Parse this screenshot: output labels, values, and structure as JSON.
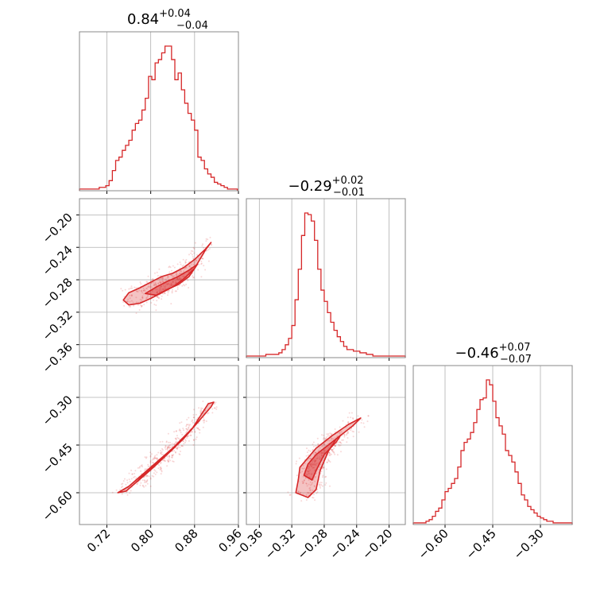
{
  "chart_data": {
    "type": "corner",
    "color": "#d62728",
    "grid": true,
    "parameters": [
      {
        "title": {
          "value": "0.84",
          "plus": "+0.04",
          "minus": "−0.04"
        },
        "range": [
          0.67,
          0.96
        ],
        "ticks": [
          0.72,
          0.8,
          0.88,
          0.96
        ],
        "tick_labels": [
          "0.72",
          "0.80",
          "0.88",
          "0.96"
        ],
        "hist": {
          "bins": [
            0.67,
            0.676,
            0.682,
            0.688,
            0.694,
            0.7,
            0.706,
            0.712,
            0.718,
            0.724,
            0.73,
            0.736,
            0.742,
            0.748,
            0.754,
            0.76,
            0.766,
            0.772,
            0.778,
            0.784,
            0.79,
            0.796,
            0.802,
            0.808,
            0.814,
            0.82,
            0.826,
            0.832,
            0.838,
            0.844,
            0.85,
            0.856,
            0.862,
            0.868,
            0.874,
            0.88,
            0.886,
            0.892,
            0.898,
            0.904,
            0.91,
            0.916,
            0.922,
            0.928,
            0.934,
            0.94,
            0.946,
            0.952,
            0.958
          ],
          "counts": [
            0.01,
            0.01,
            0.01,
            0.01,
            0.01,
            0.01,
            0.02,
            0.02,
            0.03,
            0.06,
            0.12,
            0.18,
            0.2,
            0.24,
            0.27,
            0.3,
            0.36,
            0.4,
            0.42,
            0.48,
            0.55,
            0.68,
            0.66,
            0.76,
            0.78,
            0.82,
            0.86,
            0.86,
            0.78,
            0.66,
            0.7,
            0.6,
            0.52,
            0.46,
            0.42,
            0.36,
            0.2,
            0.18,
            0.13,
            0.1,
            0.08,
            0.05,
            0.04,
            0.03,
            0.02,
            0.01,
            0.01,
            0.01
          ]
        }
      },
      {
        "title": {
          "value": "−0.29",
          "plus": "+0.02",
          "minus": "−0.01"
        },
        "range": [
          -0.376,
          -0.18
        ],
        "ticks": [
          -0.36,
          -0.32,
          -0.28,
          -0.24,
          -0.2
        ],
        "tick_labels": [
          "−0.36",
          "−0.32",
          "−0.28",
          "−0.24",
          "−0.20"
        ],
        "hist": {
          "bins": [
            -0.376,
            -0.372,
            -0.368,
            -0.364,
            -0.36,
            -0.356,
            -0.352,
            -0.348,
            -0.344,
            -0.34,
            -0.336,
            -0.332,
            -0.328,
            -0.324,
            -0.32,
            -0.316,
            -0.312,
            -0.308,
            -0.304,
            -0.3,
            -0.296,
            -0.292,
            -0.288,
            -0.284,
            -0.28,
            -0.276,
            -0.272,
            -0.268,
            -0.264,
            -0.26,
            -0.256,
            -0.252,
            -0.248,
            -0.244,
            -0.24,
            -0.236,
            -0.232,
            -0.228,
            -0.224,
            -0.22,
            -0.216,
            -0.212,
            -0.208,
            -0.204,
            -0.2,
            -0.196,
            -0.192,
            -0.188,
            -0.184,
            -0.18
          ],
          "counts": [
            0.01,
            0.01,
            0.01,
            0.01,
            0.01,
            0.01,
            0.02,
            0.02,
            0.02,
            0.02,
            0.03,
            0.05,
            0.08,
            0.12,
            0.2,
            0.36,
            0.55,
            0.76,
            0.9,
            0.89,
            0.85,
            0.73,
            0.55,
            0.42,
            0.35,
            0.28,
            0.22,
            0.17,
            0.13,
            0.1,
            0.07,
            0.05,
            0.05,
            0.04,
            0.04,
            0.03,
            0.03,
            0.02,
            0.02,
            0.01,
            0.01,
            0.01,
            0.01,
            0.01,
            0.01,
            0.01,
            0.01,
            0.01,
            0.01
          ]
        }
      },
      {
        "title": {
          "value": "−0.46",
          "plus": "+0.07",
          "minus": "−0.07"
        },
        "range": [
          -0.7,
          -0.2
        ],
        "ticks": [
          -0.6,
          -0.45,
          -0.3
        ],
        "tick_labels": [
          "−0.60",
          "−0.45",
          "−0.30"
        ],
        "hist": {
          "bins": [
            -0.7,
            -0.69,
            -0.68,
            -0.67,
            -0.66,
            -0.65,
            -0.64,
            -0.63,
            -0.62,
            -0.61,
            -0.6,
            -0.59,
            -0.58,
            -0.57,
            -0.56,
            -0.55,
            -0.54,
            -0.53,
            -0.52,
            -0.51,
            -0.5,
            -0.49,
            -0.48,
            -0.47,
            -0.46,
            -0.45,
            -0.44,
            -0.43,
            -0.42,
            -0.41,
            -0.4,
            -0.39,
            -0.38,
            -0.37,
            -0.36,
            -0.35,
            -0.34,
            -0.33,
            -0.32,
            -0.31,
            -0.3,
            -0.29,
            -0.28,
            -0.27,
            -0.26,
            -0.25,
            -0.24,
            -0.23,
            -0.22,
            -0.21,
            -0.2
          ],
          "counts": [
            0.01,
            0.01,
            0.01,
            0.01,
            0.02,
            0.03,
            0.05,
            0.08,
            0.1,
            0.15,
            0.2,
            0.22,
            0.25,
            0.28,
            0.35,
            0.45,
            0.5,
            0.52,
            0.56,
            0.62,
            0.7,
            0.76,
            0.77,
            0.88,
            0.85,
            0.75,
            0.65,
            0.6,
            0.55,
            0.45,
            0.42,
            0.38,
            0.32,
            0.25,
            0.18,
            0.15,
            0.11,
            0.09,
            0.07,
            0.05,
            0.04,
            0.03,
            0.02,
            0.02,
            0.01,
            0.01,
            0.01,
            0.01,
            0.01,
            0.01
          ]
        }
      }
    ],
    "pairs": [
      {
        "x": 0,
        "y": 1,
        "description": "2D density, positive correlation",
        "outer_contour": [
          [
            0.75,
            -0.305
          ],
          [
            0.76,
            -0.296
          ],
          [
            0.78,
            -0.29
          ],
          [
            0.8,
            -0.283
          ],
          [
            0.82,
            -0.276
          ],
          [
            0.84,
            -0.272
          ],
          [
            0.86,
            -0.265
          ],
          [
            0.88,
            -0.255
          ],
          [
            0.9,
            -0.242
          ],
          [
            0.91,
            -0.234
          ],
          [
            0.9,
            -0.243
          ],
          [
            0.88,
            -0.266
          ],
          [
            0.86,
            -0.279
          ],
          [
            0.84,
            -0.289
          ],
          [
            0.82,
            -0.296
          ],
          [
            0.8,
            -0.303
          ],
          [
            0.78,
            -0.309
          ],
          [
            0.76,
            -0.311
          ]
        ],
        "inner_contour": [
          [
            0.79,
            -0.297
          ],
          [
            0.81,
            -0.289
          ],
          [
            0.83,
            -0.282
          ],
          [
            0.85,
            -0.276
          ],
          [
            0.87,
            -0.268
          ],
          [
            0.885,
            -0.261
          ],
          [
            0.87,
            -0.276
          ],
          [
            0.85,
            -0.286
          ],
          [
            0.83,
            -0.292
          ],
          [
            0.81,
            -0.299
          ]
        ]
      },
      {
        "x": 0,
        "y": 2,
        "description": "2D density, strong linear correlation",
        "outer_contour": [
          [
            0.74,
            -0.6
          ],
          [
            0.76,
            -0.58
          ],
          [
            0.8,
            -0.52
          ],
          [
            0.84,
            -0.46
          ],
          [
            0.88,
            -0.39
          ],
          [
            0.91,
            -0.33
          ],
          [
            0.915,
            -0.315
          ],
          [
            0.905,
            -0.32
          ],
          [
            0.875,
            -0.4
          ],
          [
            0.835,
            -0.47
          ],
          [
            0.795,
            -0.535
          ],
          [
            0.755,
            -0.595
          ]
        ],
        "inner_contour": [
          [
            0.78,
            -0.555
          ],
          [
            0.82,
            -0.495
          ],
          [
            0.86,
            -0.43
          ],
          [
            0.89,
            -0.37
          ],
          [
            0.88,
            -0.39
          ],
          [
            0.845,
            -0.455
          ],
          [
            0.805,
            -0.52
          ],
          [
            0.775,
            -0.565
          ]
        ]
      },
      {
        "x": 1,
        "y": 2,
        "description": "2D density, positive correlation",
        "outer_contour": [
          [
            -0.315,
            -0.6
          ],
          [
            -0.312,
            -0.56
          ],
          [
            -0.31,
            -0.52
          ],
          [
            -0.3,
            -0.49
          ],
          [
            -0.29,
            -0.46
          ],
          [
            -0.27,
            -0.42
          ],
          [
            -0.25,
            -0.385
          ],
          [
            -0.235,
            -0.365
          ],
          [
            -0.245,
            -0.39
          ],
          [
            -0.265,
            -0.43
          ],
          [
            -0.275,
            -0.47
          ],
          [
            -0.285,
            -0.53
          ],
          [
            -0.29,
            -0.59
          ],
          [
            -0.3,
            -0.615
          ]
        ],
        "inner_contour": [
          [
            -0.305,
            -0.545
          ],
          [
            -0.3,
            -0.51
          ],
          [
            -0.29,
            -0.48
          ],
          [
            -0.275,
            -0.45
          ],
          [
            -0.26,
            -0.42
          ],
          [
            -0.265,
            -0.44
          ],
          [
            -0.28,
            -0.48
          ],
          [
            -0.29,
            -0.53
          ],
          [
            -0.295,
            -0.56
          ]
        ]
      }
    ]
  }
}
